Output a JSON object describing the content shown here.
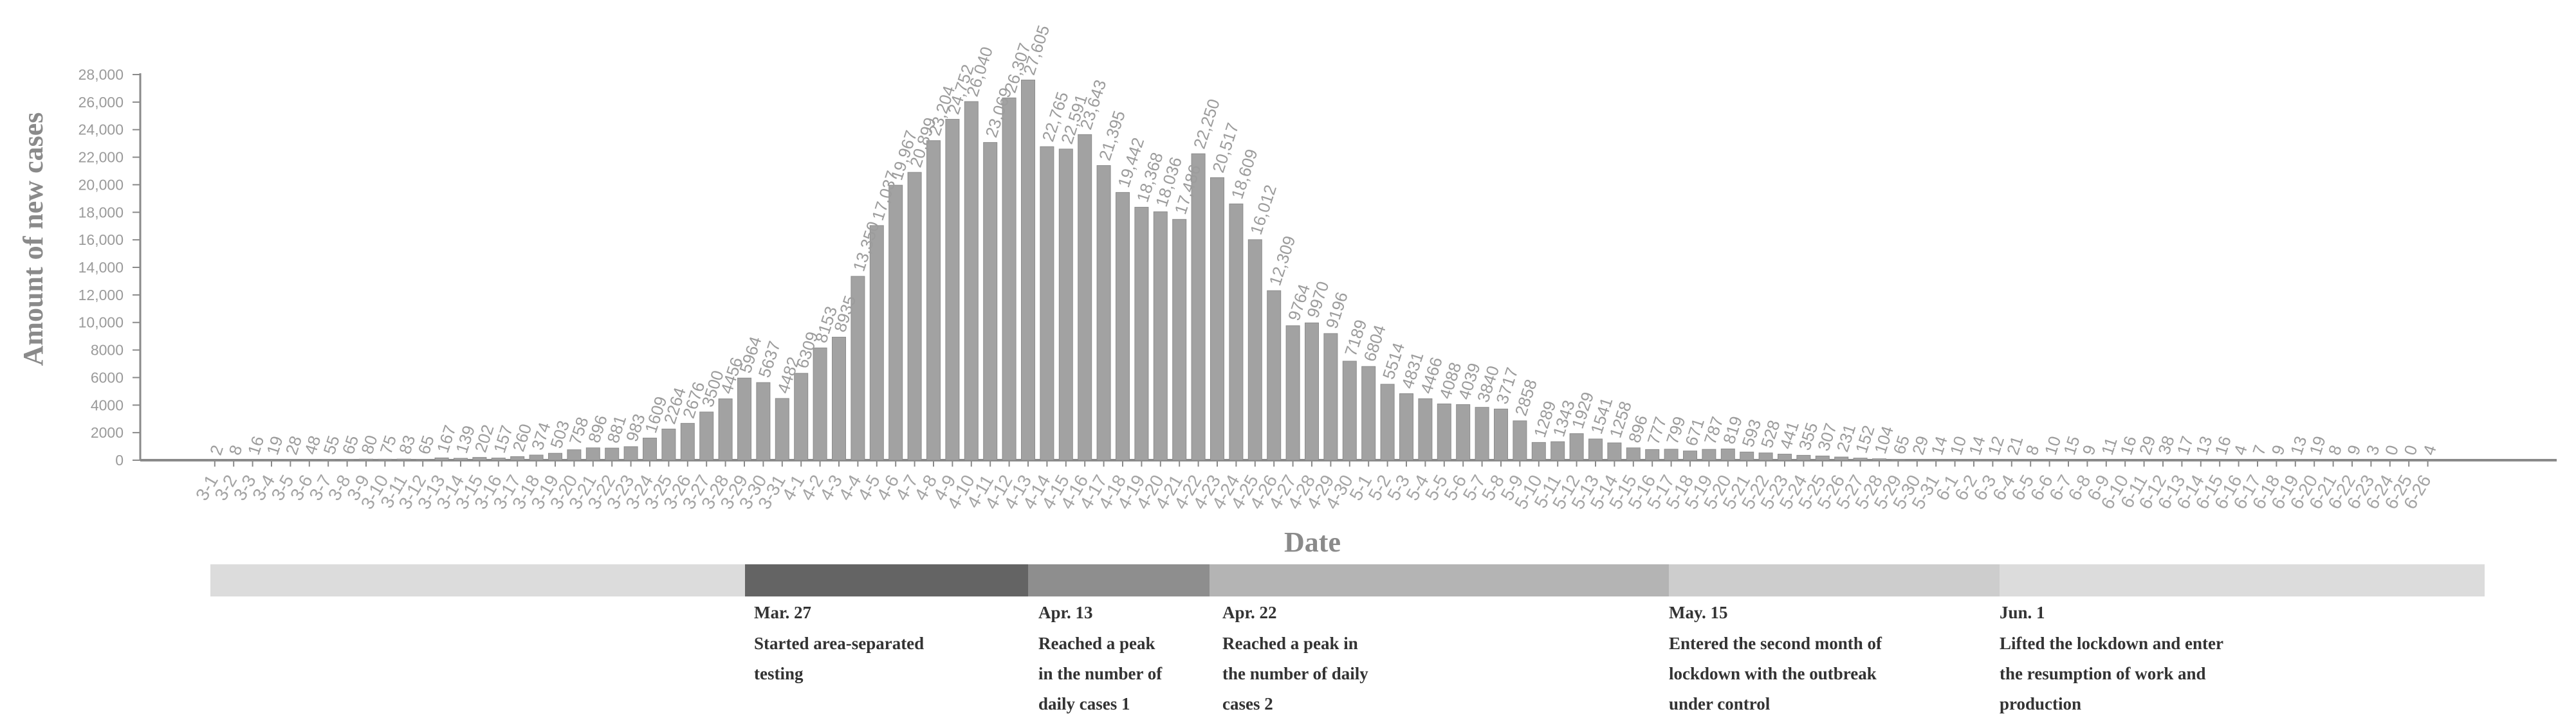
{
  "chart_data": {
    "type": "bar",
    "xlabel": "Date",
    "ylabel": "Amount of new cases",
    "ylim": [
      0,
      28000
    ],
    "yticks": [
      "0",
      "2000",
      "4000",
      "6000",
      "8000",
      "10,000",
      "12,000",
      "14,000",
      "16,000",
      "18,000",
      "20,000",
      "22,000",
      "24,000",
      "26,000",
      "28,000"
    ],
    "grid": false,
    "categories": [
      "3-1",
      "3-2",
      "3-3",
      "3-4",
      "3-5",
      "3-6",
      "3-7",
      "3-8",
      "3-9",
      "3-10",
      "3-11",
      "3-12",
      "3-13",
      "3-14",
      "3-15",
      "3-16",
      "3-17",
      "3-18",
      "3-19",
      "3-20",
      "3-21",
      "3-22",
      "3-23",
      "3-24",
      "3-25",
      "3-26",
      "3-27",
      "3-28",
      "3-29",
      "3-30",
      "3-31",
      "4-1",
      "4-2",
      "4-3",
      "4-4",
      "4-5",
      "4-6",
      "4-7",
      "4-8",
      "4-9",
      "4-10",
      "4-11",
      "4-12",
      "4-13",
      "4-14",
      "4-15",
      "4-16",
      "4-17",
      "4-18",
      "4-19",
      "4-20",
      "4-21",
      "4-22",
      "4-23",
      "4-24",
      "4-25",
      "4-26",
      "4-27",
      "4-28",
      "4-29",
      "4-30",
      "5-1",
      "5-2",
      "5-3",
      "5-4",
      "5-5",
      "5-6",
      "5-7",
      "5-8",
      "5-9",
      "5-10",
      "5-11",
      "5-12",
      "5-13",
      "5-14",
      "5-15",
      "5-16",
      "5-17",
      "5-18",
      "5-19",
      "5-20",
      "5-21",
      "5-22",
      "5-23",
      "5-24",
      "5-25",
      "5-26",
      "5-27",
      "5-28",
      "5-29",
      "5-30",
      "5-31",
      "6-1",
      "6-2",
      "6-3",
      "6-4",
      "6-5",
      "6-6",
      "6-7",
      "6-8",
      "6-9",
      "6-10",
      "6-11",
      "6-12",
      "6-13",
      "6-14",
      "6-15",
      "6-16",
      "6-17",
      "6-18",
      "6-19",
      "6-20",
      "6-21",
      "6-22",
      "6-23",
      "6-24",
      "6-25",
      "6-26"
    ],
    "values": [
      2,
      8,
      16,
      19,
      28,
      48,
      55,
      65,
      80,
      75,
      83,
      65,
      167,
      139,
      202,
      157,
      260,
      374,
      503,
      758,
      896,
      881,
      983,
      1609,
      2264,
      2676,
      3500,
      4456,
      5964,
      5637,
      4482,
      6309,
      8153,
      8935,
      13350,
      17037,
      19967,
      20899,
      23204,
      24752,
      26040,
      23069,
      26307,
      27605,
      22765,
      22591,
      23643,
      21395,
      19442,
      18368,
      18036,
      17486,
      22250,
      20517,
      18609,
      16012,
      12309,
      9764,
      9970,
      9196,
      7189,
      6804,
      5514,
      4831,
      4466,
      4088,
      4039,
      3840,
      3717,
      2858,
      1289,
      1343,
      1929,
      1541,
      1258,
      896,
      777,
      799,
      671,
      787,
      819,
      593,
      528,
      441,
      355,
      307,
      231,
      152,
      104,
      65,
      29,
      14,
      10,
      14,
      12,
      21,
      8,
      10,
      15,
      9,
      11,
      16,
      29,
      38,
      17,
      13,
      16,
      4,
      7,
      9,
      13,
      19,
      8,
      9,
      3,
      0,
      0,
      4
    ],
    "value_labels": [
      "2",
      "8",
      "16",
      "19",
      "28",
      "48",
      "55",
      "65",
      "80",
      "75",
      "83",
      "65",
      "167",
      "139",
      "202",
      "157",
      "260",
      "374",
      "503",
      "758",
      "896",
      "881",
      "983",
      "1609",
      "2264",
      "2676",
      "3500",
      "4456",
      "5964",
      "5637",
      "4482",
      "6309",
      "8153",
      "8935",
      "13,350",
      "17,037",
      "19,967",
      "20,899",
      "23,204",
      "24,752",
      "26,040",
      "23,069",
      "26,307",
      "27,605",
      "22,765",
      "22,591",
      "23,643",
      "21,395",
      "19,442",
      "18,368",
      "18,036",
      "17,486",
      "22,250",
      "20,517",
      "18,609",
      "16,012",
      "12,309",
      "9764",
      "9970",
      "9196",
      "7189",
      "6804",
      "5514",
      "4831",
      "4466",
      "4088",
      "4039",
      "3840",
      "3717",
      "2858",
      "1289",
      "1343",
      "1929",
      "1541",
      "1258",
      "896",
      "777",
      "799",
      "671",
      "787",
      "819",
      "593",
      "528",
      "441",
      "355",
      "307",
      "231",
      "152",
      "104",
      "65",
      "29",
      "14",
      "10",
      "14",
      "12",
      "21",
      "8",
      "10",
      "15",
      "9",
      "11",
      "16",
      "29",
      "38",
      "17",
      "13",
      "16",
      "4",
      "7",
      "9",
      "13",
      "19",
      "8",
      "9",
      "3",
      "0",
      "0",
      "4"
    ]
  },
  "timeline": {
    "segment_colors": [
      "#dcdcdc",
      "#646464",
      "#8e8e8e",
      "#b4b4b4",
      "#cdcdcd",
      "#dcdcdc"
    ],
    "milestones": [
      {
        "date": "Mar. 27",
        "lines": [
          "Started area-separated",
          "testing"
        ]
      },
      {
        "date": "Apr. 13",
        "lines": [
          "Reached a peak",
          "in the number of",
          "daily cases 1"
        ]
      },
      {
        "date": "Apr. 22",
        "lines": [
          "Reached a peak in",
          "the number of daily",
          "cases 2"
        ]
      },
      {
        "date": "May. 15",
        "lines": [
          "Entered the second month of",
          "lockdown with the outbreak",
          "under control"
        ]
      },
      {
        "date": "Jun. 1",
        "lines": [
          "Lifted the lockdown and enter",
          "the resumption of work and",
          "production"
        ]
      }
    ]
  },
  "colors": {
    "bar": "#a2a2a2",
    "bar_edge": "#8c8c8c",
    "axis": "#8a8a8a"
  }
}
